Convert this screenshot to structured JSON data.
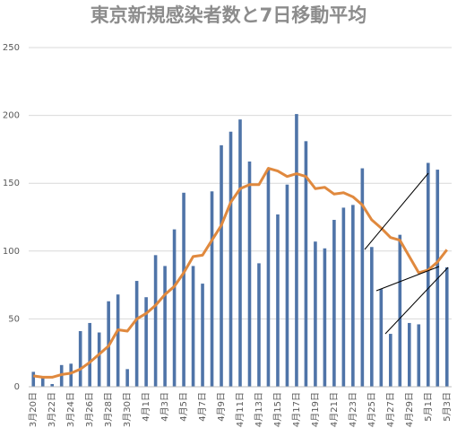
{
  "chart_data": {
    "type": "bar",
    "title": "東京新規感染者数と7日移動平均",
    "categories": [
      "3月20日",
      null,
      "3月22日",
      null,
      "3月24日",
      null,
      "3月26日",
      null,
      "3月28日",
      null,
      "3月30日",
      null,
      "4月1日",
      null,
      "4月3日",
      null,
      "4月5日",
      null,
      "4月7日",
      null,
      "4月9日",
      null,
      "4月11日",
      null,
      "4月13日",
      null,
      "4月15日",
      null,
      "4月17日",
      null,
      "4月19日",
      null,
      "4月21日",
      null,
      "4月23日",
      null,
      "4月25日",
      null,
      "4月27日",
      null,
      "4月29日",
      null,
      "5月1日",
      null,
      "5月3日"
    ],
    "series": [
      {
        "type": "bar",
        "color": "#4f74a8",
        "values": [
          11,
          7,
          2,
          16,
          17,
          41,
          47,
          40,
          63,
          68,
          13,
          78,
          66,
          97,
          89,
          116,
          143,
          89,
          76,
          144,
          178,
          188,
          197,
          166,
          91,
          161,
          127,
          149,
          201,
          181,
          107,
          102,
          123,
          132,
          134,
          161,
          103,
          72,
          39,
          112,
          47,
          46,
          165,
          160,
          88
        ]
      },
      {
        "type": "line",
        "color": "#e0893e",
        "values": [
          8,
          7,
          7,
          9,
          10,
          13,
          18,
          24,
          30,
          42,
          41,
          50,
          54,
          60,
          68,
          74,
          84,
          96,
          97,
          108,
          119,
          136,
          146,
          149,
          149,
          161,
          159,
          155,
          157,
          155,
          146,
          147,
          142,
          143,
          140,
          134,
          123,
          117,
          110,
          108,
          96,
          84,
          86,
          92,
          101
        ]
      }
    ],
    "ylim": [
      0,
      250
    ],
    "yticks": [
      0,
      50,
      100,
      150,
      200,
      250
    ],
    "grid": true
  }
}
